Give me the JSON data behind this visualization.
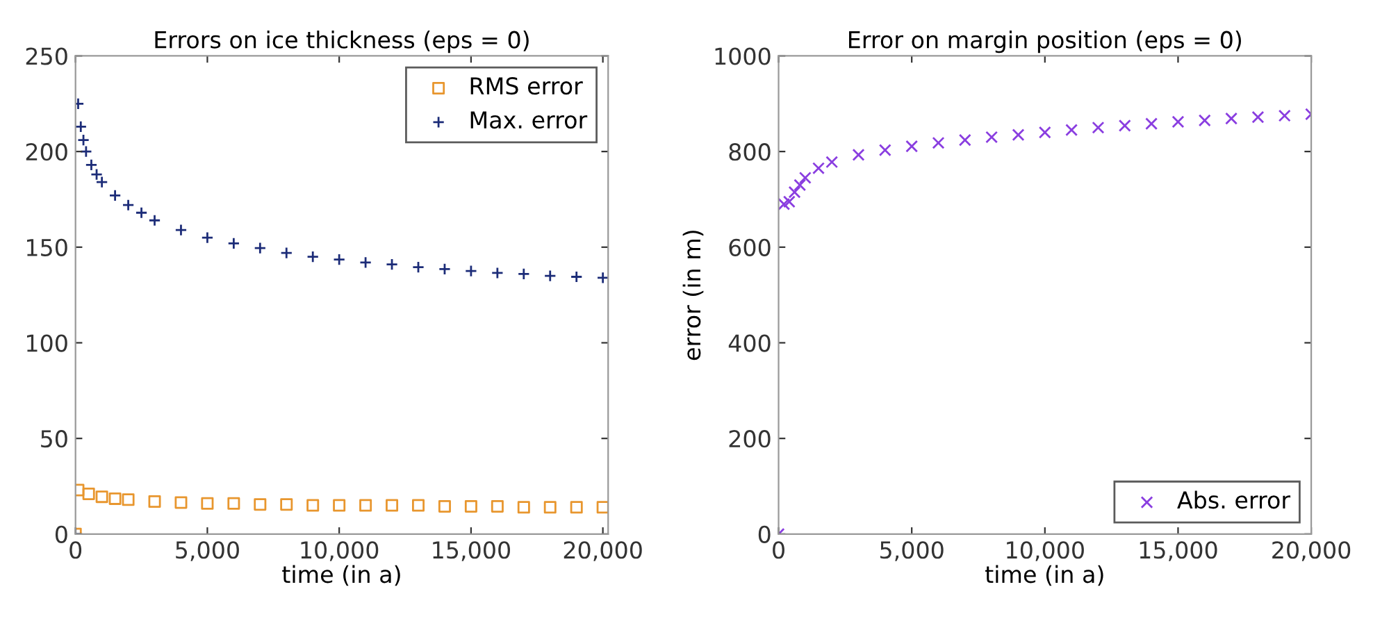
{
  "chart_data": [
    {
      "type": "scatter",
      "title": "Errors on ice thickness (eps = 0)",
      "xlabel": "time (in a)",
      "xlim": [
        0,
        20200
      ],
      "xticks": [
        0,
        {
          "value": 5000,
          "label": "5,000"
        },
        {
          "value": 10000,
          "label": "10,000"
        },
        {
          "value": 15000,
          "label": "15,000"
        },
        {
          "value": 20000,
          "label": "20,000"
        }
      ],
      "ylim": [
        0,
        250
      ],
      "yticks": [
        0,
        50,
        100,
        150,
        200,
        250
      ],
      "grid": false,
      "legend": "top right",
      "series": [
        {
          "name": "RMS error",
          "color": "#e8962e",
          "marker": "square",
          "x": [
            0,
            100,
            500,
            1000,
            1500,
            2000,
            3000,
            4000,
            5000,
            6000,
            7000,
            8000,
            9000,
            10000,
            11000,
            12000,
            13000,
            14000,
            15000,
            16000,
            17000,
            18000,
            19000,
            20000
          ],
          "values": [
            0,
            23,
            21,
            19.5,
            18.5,
            18,
            17,
            16.5,
            16,
            16,
            15.5,
            15.5,
            15,
            15,
            15,
            15,
            15,
            14.5,
            14.5,
            14.5,
            14,
            14,
            14,
            14
          ]
        },
        {
          "name": "Max. error",
          "color": "#1c2c78",
          "marker": "cross",
          "x": [
            0,
            100,
            200,
            300,
            400,
            600,
            800,
            1000,
            1500,
            2000,
            2500,
            3000,
            4000,
            5000,
            6000,
            7000,
            8000,
            9000,
            10000,
            11000,
            12000,
            13000,
            14000,
            15000,
            16000,
            17000,
            18000,
            19000,
            20000
          ],
          "values": [
            0,
            225,
            213,
            206,
            200,
            193,
            188,
            184,
            177,
            172,
            168,
            164,
            159,
            155,
            152,
            149.5,
            147,
            145,
            143.5,
            142,
            141,
            139.5,
            138.5,
            137.5,
            136.5,
            136,
            135,
            134.5,
            134
          ]
        }
      ]
    },
    {
      "type": "scatter",
      "title": "Error on margin position (eps = 0)",
      "xlabel": "time (in a)",
      "ylabel": "error (in m)",
      "xlim": [
        0,
        20000
      ],
      "xticks": [
        0,
        {
          "value": 5000,
          "label": "5,000"
        },
        {
          "value": 10000,
          "label": "10,000"
        },
        {
          "value": 15000,
          "label": "15,000"
        },
        {
          "value": 20000,
          "label": "20,000"
        }
      ],
      "ylim": [
        0,
        1000
      ],
      "yticks": [
        0,
        200,
        400,
        600,
        800,
        1000
      ],
      "grid": false,
      "legend": "bottom right",
      "series": [
        {
          "name": "Abs. error",
          "color": "#8a3ee0",
          "marker": "x",
          "x": [
            0,
            200,
            400,
            600,
            800,
            1000,
            1500,
            2000,
            3000,
            4000,
            5000,
            6000,
            7000,
            8000,
            9000,
            10000,
            11000,
            12000,
            13000,
            14000,
            15000,
            16000,
            17000,
            18000,
            19000,
            20000
          ],
          "values": [
            0,
            690,
            695,
            715,
            730,
            745,
            765,
            778,
            793,
            803,
            811,
            818,
            824,
            830,
            835,
            840,
            845,
            850,
            854,
            858,
            862,
            865,
            869,
            872,
            875,
            878
          ]
        }
      ]
    }
  ]
}
